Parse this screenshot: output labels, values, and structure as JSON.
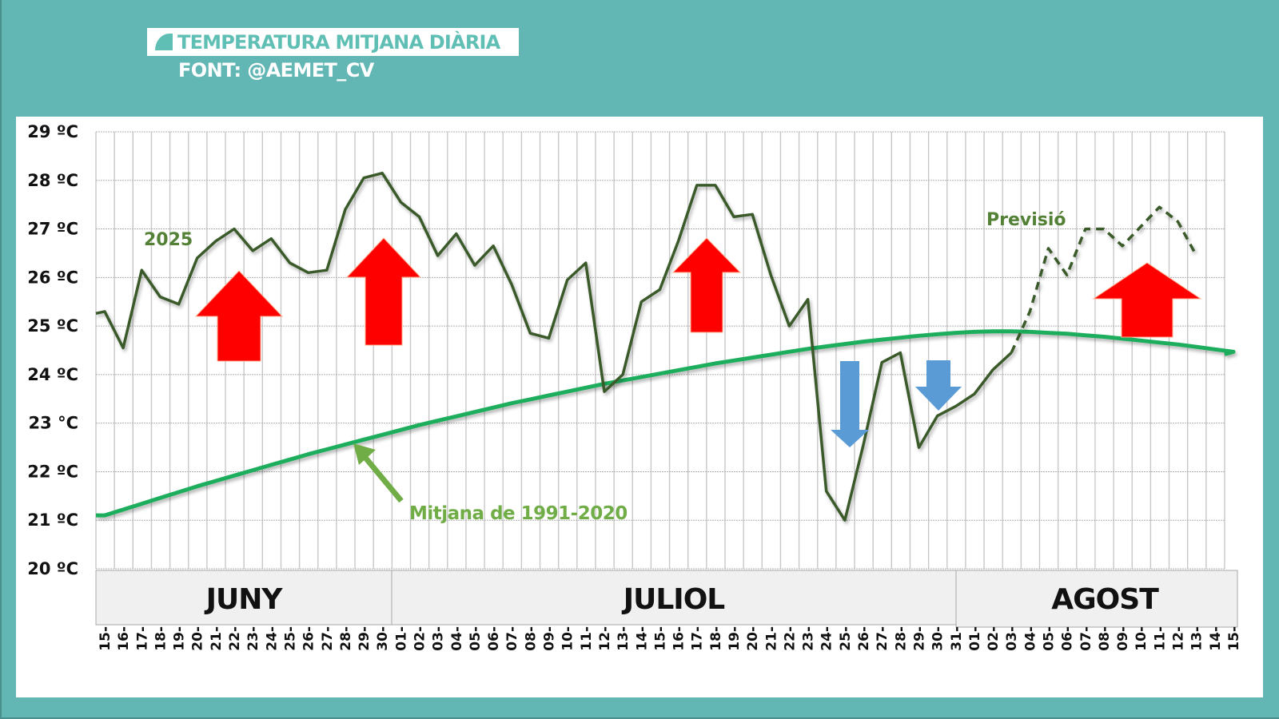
{
  "header": {
    "title": "TEMPERATURA MITJANA DIÀRIA",
    "source": "FONT: @AEMET_CV"
  },
  "colors": {
    "background": "#62b7b5",
    "title_accent": "#5fbfb4",
    "line_2025": "#3a5a2c",
    "line_climatology": "#1fae5b",
    "arrow_up": "#ff0000",
    "arrow_down": "#5b9bd5",
    "annotation_green": "#538135",
    "annotation_light_green": "#70ad47"
  },
  "chart_data": {
    "type": "line",
    "title": "TEMPERATURA MITJANA DIÀRIA",
    "subtitle": "FONT: @AEMET_CV",
    "xlabel": "",
    "ylabel": "",
    "ylim": [
      20,
      29
    ],
    "grid": true,
    "y_ticks": [
      "20 ºC",
      "21 ºC",
      "22 ºC",
      "23 °C",
      "24 ºC",
      "25 ºC",
      "26 ºC",
      "27 ºC",
      "28 ºC",
      "29 ºC"
    ],
    "months": [
      {
        "label": "JUNY",
        "start_index": 0,
        "end_index": 15
      },
      {
        "label": "JULIOL",
        "start_index": 16,
        "end_index": 46
      },
      {
        "label": "AGOST",
        "start_index": 47,
        "end_index": 61
      }
    ],
    "x": [
      "15",
      "16",
      "17",
      "18",
      "19",
      "20",
      "21",
      "22",
      "23",
      "24",
      "25",
      "26",
      "27",
      "28",
      "29",
      "30",
      "01",
      "02",
      "03",
      "04",
      "05",
      "06",
      "07",
      "08",
      "09",
      "10",
      "11",
      "12",
      "13",
      "14",
      "15",
      "16",
      "17",
      "18",
      "19",
      "20",
      "21",
      "22",
      "23",
      "24",
      "25",
      "26",
      "27",
      "28",
      "29",
      "30",
      "31",
      "01",
      "02",
      "03",
      "04",
      "05",
      "06",
      "07",
      "08",
      "09",
      "10",
      "11",
      "12",
      "13",
      "14",
      "15"
    ],
    "series": [
      {
        "name": "2025",
        "style": "solid",
        "values": [
          25.3,
          24.55,
          26.15,
          25.6,
          25.45,
          26.4,
          26.75,
          27.0,
          26.55,
          26.8,
          26.3,
          26.1,
          26.15,
          27.4,
          28.05,
          28.15,
          27.55,
          27.25,
          26.45,
          26.9,
          26.25,
          26.65,
          25.85,
          24.85,
          24.75,
          25.95,
          26.3,
          23.65,
          24.0,
          25.5,
          25.75,
          26.75,
          27.9,
          27.9,
          27.25,
          27.3,
          26.05,
          25.0,
          25.55,
          21.6,
          21.0,
          22.55,
          24.25,
          24.45,
          22.5,
          23.15,
          23.35,
          23.6,
          24.1,
          24.45,
          null,
          null,
          null,
          null,
          null,
          null,
          null,
          null,
          null,
          null,
          null,
          null
        ]
      },
      {
        "name": "Previsió",
        "style": "dashed",
        "values": [
          null,
          null,
          null,
          null,
          null,
          null,
          null,
          null,
          null,
          null,
          null,
          null,
          null,
          null,
          null,
          null,
          null,
          null,
          null,
          null,
          null,
          null,
          null,
          null,
          null,
          null,
          null,
          null,
          null,
          null,
          null,
          null,
          null,
          null,
          null,
          null,
          null,
          null,
          null,
          null,
          null,
          null,
          null,
          null,
          null,
          null,
          null,
          null,
          null,
          24.45,
          25.3,
          26.6,
          26.05,
          27.0,
          27.0,
          26.65,
          27.05,
          27.45,
          27.15,
          26.45,
          null,
          null
        ]
      },
      {
        "name": "Mitjana de 1991-2020",
        "style": "solid",
        "values": [
          21.1,
          21.22,
          21.34,
          21.46,
          21.58,
          21.7,
          21.81,
          21.92,
          22.03,
          22.14,
          22.25,
          22.36,
          22.46,
          22.56,
          22.66,
          22.76,
          22.86,
          22.96,
          23.05,
          23.14,
          23.23,
          23.32,
          23.41,
          23.49,
          23.57,
          23.65,
          23.73,
          23.81,
          23.88,
          23.95,
          24.02,
          24.09,
          24.16,
          24.23,
          24.29,
          24.35,
          24.41,
          24.47,
          24.53,
          24.58,
          24.63,
          24.68,
          24.72,
          24.76,
          24.8,
          24.83,
          24.86,
          24.88,
          24.89,
          24.89,
          24.88,
          24.86,
          24.84,
          24.81,
          24.78,
          24.74,
          24.7,
          24.66,
          24.62,
          24.57,
          24.52,
          24.47
        ]
      }
    ],
    "annotations": [
      {
        "text": "2025",
        "type": "label"
      },
      {
        "text": "Previsió",
        "type": "label"
      },
      {
        "text": "Mitjana de 1991-2020",
        "type": "label-with-arrow"
      },
      {
        "type": "arrow-up",
        "color": "red",
        "near": "Jun 22"
      },
      {
        "type": "arrow-up",
        "color": "red",
        "near": "Jun 30"
      },
      {
        "type": "arrow-up",
        "color": "red",
        "near": "Jul 17"
      },
      {
        "type": "arrow-down",
        "color": "blue",
        "near": "Jul 25"
      },
      {
        "type": "arrow-down",
        "color": "blue",
        "near": "Jul 30"
      },
      {
        "type": "arrow-up",
        "color": "red",
        "near": "Aug 10"
      }
    ]
  }
}
